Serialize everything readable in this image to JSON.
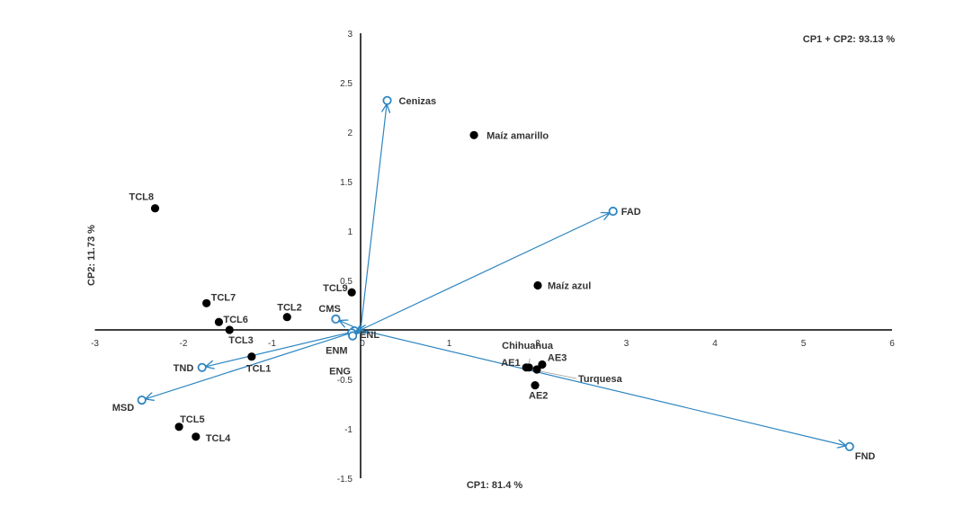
{
  "chart_data": {
    "type": "scatter",
    "title": "",
    "annotation": "CP1 + CP2: 93.13 %",
    "xlabel": "CP1: 81.4 %",
    "ylabel": "CP2: 11.73 %",
    "xlim": [
      -3,
      6
    ],
    "ylim": [
      -1.5,
      3
    ],
    "x_ticks": [
      -3,
      -2,
      -1,
      0,
      1,
      2,
      3,
      4,
      5,
      6
    ],
    "y_ticks": [
      -1.5,
      -1,
      -0.5,
      0,
      0.5,
      1,
      1.5,
      2,
      2.5,
      3
    ],
    "grid": false,
    "colors": {
      "points": "#000000",
      "vectors": "#2e86c1",
      "axes": "#000000",
      "text": "#333333"
    },
    "samples": [
      {
        "name": "Maíz amarillo",
        "x": 1.28,
        "y": 1.97
      },
      {
        "name": "Maíz azul",
        "x": 2.0,
        "y": 0.45
      },
      {
        "name": "TCL8",
        "x": -2.32,
        "y": 1.23
      },
      {
        "name": "TCL9",
        "x": -0.1,
        "y": 0.38
      },
      {
        "name": "TCL7",
        "x": -1.74,
        "y": 0.27
      },
      {
        "name": "TCL6",
        "x": -1.6,
        "y": 0.08
      },
      {
        "name": "TCL2",
        "x": -0.83,
        "y": 0.13
      },
      {
        "name": "TCL3",
        "x": -1.48,
        "y": 0.0
      },
      {
        "name": "TCL1",
        "x": -1.23,
        "y": -0.27
      },
      {
        "name": "TCL5",
        "x": -2.05,
        "y": -0.98
      },
      {
        "name": "TCL4",
        "x": -1.86,
        "y": -1.08
      },
      {
        "name": "Chihuahua",
        "x": 1.9,
        "y": -0.38
      },
      {
        "name": "AE1",
        "x": 1.87,
        "y": -0.38
      },
      {
        "name": "AE3",
        "x": 2.05,
        "y": -0.35
      },
      {
        "name": "Turquesa",
        "x": 1.99,
        "y": -0.4
      },
      {
        "name": "AE2",
        "x": 1.97,
        "y": -0.56
      }
    ],
    "vectors": [
      {
        "name": "Cenizas",
        "x": 0.3,
        "y": 2.32
      },
      {
        "name": "FAD",
        "x": 2.85,
        "y": 1.2
      },
      {
        "name": "FND",
        "x": 5.52,
        "y": -1.18
      },
      {
        "name": "MSD",
        "x": -2.47,
        "y": -0.71
      },
      {
        "name": "TND",
        "x": -1.79,
        "y": -0.38
      },
      {
        "name": "CMS",
        "x": -0.28,
        "y": 0.11
      },
      {
        "name": "ENL",
        "x": -0.07,
        "y": -0.01
      },
      {
        "name": "ENM",
        "x": -0.1,
        "y": -0.03
      },
      {
        "name": "ENG",
        "x": -0.09,
        "y": -0.06
      }
    ]
  }
}
